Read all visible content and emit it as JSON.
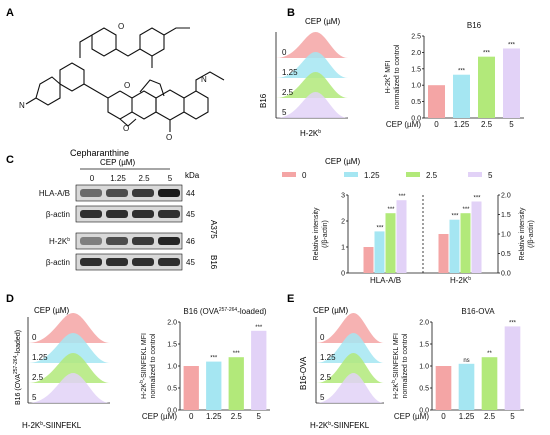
{
  "panels": {
    "A": "A",
    "B": "B",
    "C": "C",
    "D": "D",
    "E": "E"
  },
  "colors": {
    "c0": "#f4a5a5",
    "c1": "#a5e6f2",
    "c2": "#b2e97a",
    "c3": "#e2d2f7"
  },
  "doses": [
    "0",
    "1.25",
    "2.5",
    "5"
  ],
  "panel_a": {
    "compound_name": "Cepharanthine"
  },
  "panel_b": {
    "hist_title": "CEP (µM)",
    "hist_side_label": "B16",
    "hist_axis_label": "H-2K",
    "hist_axis_sup": "b"
  },
  "panel_c": {
    "blot_title": "CEP (µM)",
    "rows": [
      {
        "label": "HLA-A/B",
        "kda": "44"
      },
      {
        "label": "β-actin",
        "kda": "45"
      },
      {
        "label": "H-2K",
        "sup": "b",
        "kda": "46"
      },
      {
        "label": "β-actin",
        "kda": "45"
      }
    ],
    "side_labels": [
      "A375",
      "B16"
    ],
    "kda_unit": "kDa",
    "legend_title": "CEP (µM)"
  },
  "panel_d": {
    "hist_title": "CEP (µM)",
    "hist_side_label": "B16 (OVA",
    "hist_side_sup": "257-264",
    "hist_side_tail": "-loaded)",
    "hist_axis_label": "H-2K",
    "hist_axis_sup": "b",
    "hist_axis_tail": "-SIINFEKL"
  },
  "panel_e": {
    "hist_title": "CEP (µM)",
    "hist_side_label": "B16-OVA",
    "hist_axis_label": "H-2K",
    "hist_axis_sup": "b",
    "hist_axis_tail": "-SIINFEKL"
  },
  "chart_data": [
    {
      "id": "B-bar",
      "type": "bar",
      "title": "B16",
      "ylabel": "H-2K",
      "ylabel_sup": "b",
      "ylabel_tail": " MFI",
      "ylabel2": "normalized to control",
      "xlabel": "CEP (µM)",
      "categories": [
        "0",
        "1.25",
        "2.5",
        "5"
      ],
      "values": [
        1.0,
        1.32,
        1.87,
        2.12
      ],
      "annotations": [
        "",
        "***",
        "***",
        "***"
      ],
      "ylim": [
        0,
        2.5
      ],
      "yticks": [
        0.0,
        0.5,
        1.0,
        1.5,
        2.0,
        2.5
      ]
    },
    {
      "id": "C-bar",
      "type": "bar",
      "ylabel": "Relative intensity",
      "ylabel2": "(/β-actin)",
      "categories": [
        "HLA-A/B",
        "H-2K"
      ],
      "category_sups": [
        "",
        "b"
      ],
      "series": [
        {
          "name": "0",
          "values": [
            1.0,
            1.5
          ]
        },
        {
          "name": "1.25",
          "values": [
            1.6,
            2.05
          ]
        },
        {
          "name": "2.5",
          "values": [
            2.3,
            2.3
          ]
        },
        {
          "name": "5",
          "values": [
            2.8,
            2.75
          ]
        }
      ],
      "annotations": [
        [
          "",
          "***",
          "***",
          "***"
        ],
        [
          "",
          "***",
          "***",
          "***"
        ]
      ],
      "ylim": [
        0,
        3
      ],
      "yticks": [
        0,
        1,
        2,
        3
      ],
      "ylim_right": [
        0.0,
        2.0
      ],
      "yticks_right": [
        0.0,
        0.5,
        1.0,
        1.5,
        2.0
      ],
      "legend": "top"
    },
    {
      "id": "D-bar",
      "type": "bar",
      "title": "B16 (OVA",
      "title_sup": "257-264",
      "title_tail": "-loaded)",
      "ylabel": "H-2K",
      "ylabel_sup": "b",
      "ylabel_tail": "-SIINFEKL MFI",
      "ylabel2": "normalized to control",
      "xlabel": "CEP (µM)",
      "categories": [
        "0",
        "1.25",
        "2.5",
        "5"
      ],
      "values": [
        1.0,
        1.1,
        1.2,
        1.8
      ],
      "annotations": [
        "",
        "***",
        "***",
        "***"
      ],
      "ylim": [
        0,
        2.0
      ],
      "yticks": [
        0.0,
        0.5,
        1.0,
        1.5,
        2.0
      ]
    },
    {
      "id": "E-bar",
      "type": "bar",
      "title": "B16-OVA",
      "ylabel": "H-2K",
      "ylabel_sup": "b",
      "ylabel_tail": "-SIINFEKL MFI",
      "ylabel2": "normalized to control",
      "xlabel": "CEP (µM)",
      "categories": [
        "0",
        "1.25",
        "2.5",
        "5"
      ],
      "values": [
        1.0,
        1.05,
        1.2,
        1.9
      ],
      "annotations": [
        "",
        "ns",
        "**",
        "***"
      ],
      "ylim": [
        0,
        2.0
      ],
      "yticks": [
        0.0,
        0.5,
        1.0,
        1.5,
        2.0
      ]
    }
  ]
}
